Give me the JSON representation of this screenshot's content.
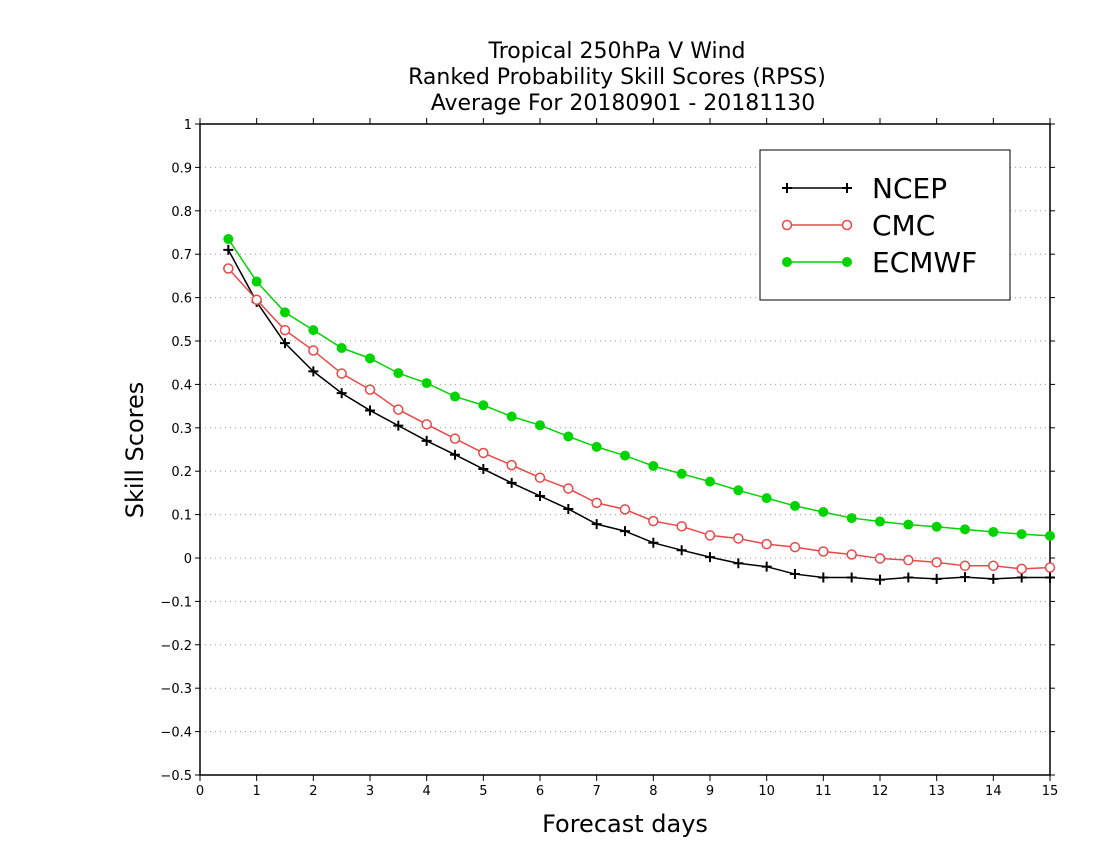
{
  "chart_data": {
    "type": "line",
    "title_lines": [
      "Tropical 250hPa V Wind",
      "Ranked Probability Skill Scores (RPSS)",
      "Average For 20180901 - 20181130"
    ],
    "xlabel": "Forecast days",
    "ylabel": "Skill Scores",
    "xlim": [
      0,
      15
    ],
    "ylim": [
      -0.5,
      1
    ],
    "xticks": [
      0,
      1,
      2,
      3,
      4,
      5,
      6,
      7,
      8,
      9,
      10,
      11,
      12,
      13,
      14,
      15
    ],
    "xtick_labels": [
      "0",
      "1",
      "2",
      "3",
      "4",
      "5",
      "6",
      "7",
      "8",
      "9",
      "10",
      "11",
      "12",
      "13",
      "14",
      "15"
    ],
    "yticks": [
      -0.5,
      -0.4,
      -0.3,
      -0.2,
      -0.1,
      0,
      0.1,
      0.2,
      0.3,
      0.4,
      0.5,
      0.6,
      0.7,
      0.8,
      0.9,
      1
    ],
    "ytick_labels": [
      "−0.5",
      "−0.4",
      "−0.3",
      "−0.2",
      "−0.1",
      "0",
      "0.1",
      "0.2",
      "0.3",
      "0.4",
      "0.5",
      "0.6",
      "0.7",
      "0.8",
      "0.9",
      "1"
    ],
    "grid": "horizontal dotted",
    "legend_position": "top-right",
    "x": [
      0.5,
      1,
      1.5,
      2,
      2.5,
      3,
      3.5,
      4,
      4.5,
      5,
      5.5,
      6,
      6.5,
      7,
      7.5,
      8,
      8.5,
      9,
      9.5,
      10,
      10.5,
      11,
      11.5,
      12,
      12.5,
      13,
      13.5,
      14,
      14.5,
      15
    ],
    "series": [
      {
        "name": "NCEP",
        "color": "#000000",
        "marker": "plus",
        "values": [
          0.71,
          0.59,
          0.495,
          0.43,
          0.38,
          0.34,
          0.305,
          0.27,
          0.238,
          0.205,
          0.173,
          0.143,
          0.113,
          0.078,
          0.062,
          0.035,
          0.018,
          0.002,
          -0.012,
          -0.02,
          -0.037,
          -0.045,
          -0.045,
          -0.05,
          -0.045,
          -0.048,
          -0.044,
          -0.048,
          -0.045,
          -0.045
        ]
      },
      {
        "name": "CMC",
        "color": "#e84848",
        "marker": "open-circle",
        "values": [
          0.667,
          0.595,
          0.525,
          0.478,
          0.425,
          0.388,
          0.342,
          0.308,
          0.275,
          0.242,
          0.214,
          0.185,
          0.16,
          0.127,
          0.112,
          0.085,
          0.073,
          0.052,
          0.045,
          0.032,
          0.025,
          0.015,
          0.008,
          -0.001,
          -0.005,
          -0.01,
          -0.018,
          -0.018,
          -0.025,
          -0.022
        ]
      },
      {
        "name": "ECMWF",
        "color": "#00d400",
        "marker": "filled-circle",
        "values": [
          0.735,
          0.637,
          0.566,
          0.525,
          0.484,
          0.46,
          0.426,
          0.403,
          0.372,
          0.352,
          0.326,
          0.306,
          0.28,
          0.256,
          0.236,
          0.212,
          0.194,
          0.176,
          0.156,
          0.138,
          0.12,
          0.106,
          0.092,
          0.084,
          0.077,
          0.072,
          0.066,
          0.06,
          0.055,
          0.051
        ]
      }
    ]
  }
}
